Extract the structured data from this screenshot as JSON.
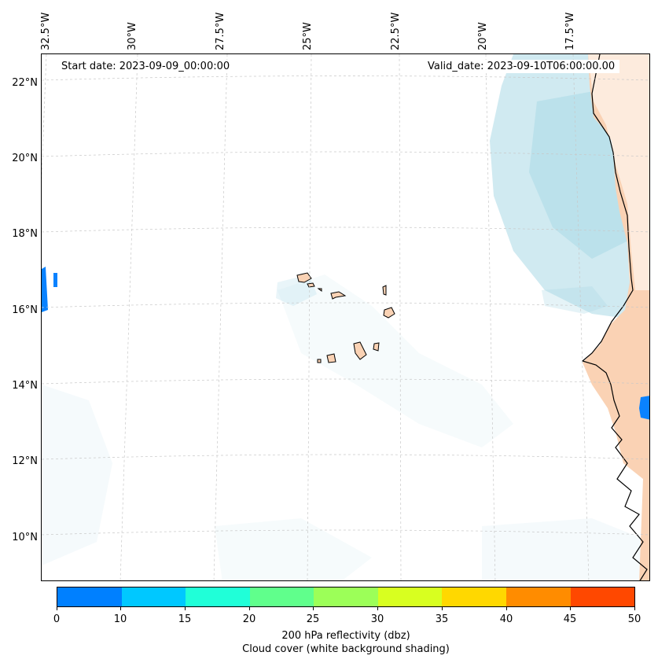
{
  "map": {
    "lon_labels": [
      "32.5°W",
      "30°W",
      "27.5°W",
      "25°W",
      "22.5°W",
      "20°W",
      "17.5°W"
    ],
    "lat_labels": [
      "22°N",
      "20°N",
      "18°N",
      "16°N",
      "14°N",
      "12°N",
      "10°N"
    ],
    "start_date": "Start date: 2023-09-09_00:00:00",
    "valid_date": "Valid_date: 2023-09-10T06:00:00.00"
  },
  "colorbar": {
    "ticks": [
      "0",
      "10",
      "15",
      "20",
      "25",
      "30",
      "35",
      "40",
      "45",
      "50"
    ],
    "colors": [
      "#0080ff",
      "#00c8ff",
      "#20ffd8",
      "#60ff8c",
      "#9cff58",
      "#d8ff20",
      "#ffd800",
      "#ff8c00",
      "#ff4800"
    ],
    "title_line1": "200 hPa reflectivity (dbz)",
    "title_line2": "Cloud cover (white background shading)"
  },
  "styles": {
    "land_color": "#fad2b4",
    "cloud_color": "#a9d8e6",
    "gridline_color": "#c8c8c8",
    "coast_color": "#000000",
    "reflectivity_color": "#0a82ff"
  }
}
